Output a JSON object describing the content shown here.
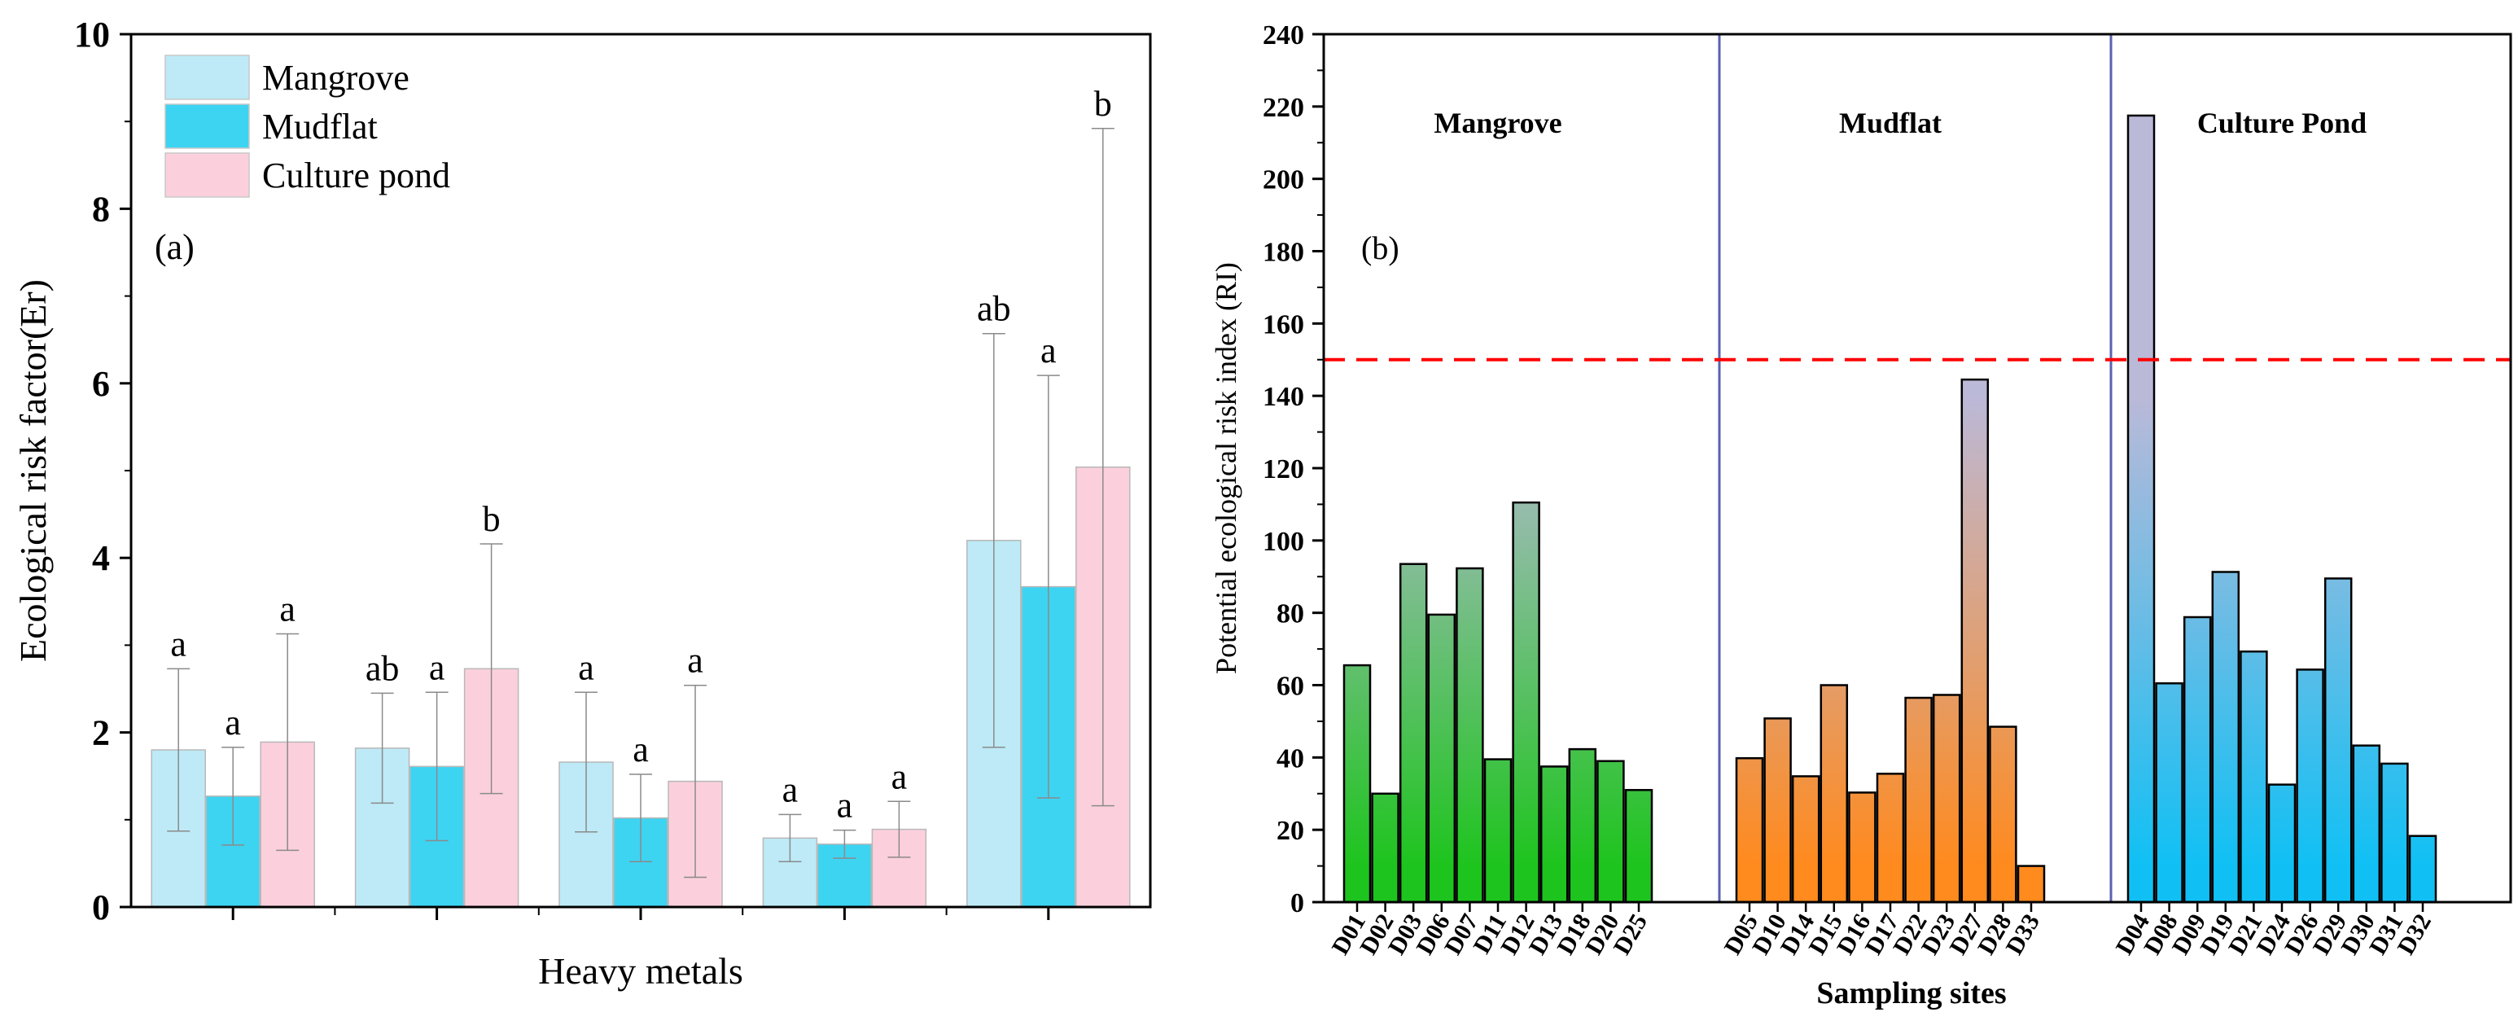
{
  "chart_data": [
    {
      "type": "bar",
      "panel_label": "(a)",
      "xlabel": "Heavy metals",
      "ylabel": "Ecological risk factor(Er)",
      "ylim": [
        0,
        10
      ],
      "yticks": [
        "0",
        "2",
        "4",
        "6",
        "8",
        "10"
      ],
      "group_count": 5,
      "legend_position": "top-left",
      "series": [
        {
          "name": "Mangrove",
          "color": "#bdeaf6",
          "values": [
            1.8,
            1.82,
            1.66,
            0.79,
            4.2
          ],
          "errors": [
            0.93,
            0.63,
            0.8,
            0.27,
            2.37
          ],
          "letters": [
            "a",
            "ab",
            "a",
            "a",
            "ab"
          ]
        },
        {
          "name": "Mudflat",
          "color": "#3dd4f2",
          "values": [
            1.27,
            1.61,
            1.02,
            0.72,
            3.67
          ],
          "errors": [
            0.56,
            0.85,
            0.5,
            0.16,
            2.42
          ],
          "letters": [
            "a",
            "a",
            "a",
            "a",
            "a"
          ]
        },
        {
          "name": "Culture pond",
          "color": "#fbd0dc",
          "values": [
            1.89,
            2.73,
            1.44,
            0.89,
            5.04
          ],
          "errors": [
            1.24,
            1.43,
            1.1,
            0.32,
            3.88
          ],
          "letters": [
            "a",
            "b",
            "a",
            "a",
            "b"
          ]
        }
      ]
    },
    {
      "type": "bar",
      "panel_label": "(b)",
      "xlabel": "Sampling sites",
      "ylabel": "Potential ecological risk index (RI)",
      "ylim": [
        0,
        240
      ],
      "yticks": [
        "0",
        "20",
        "40",
        "60",
        "80",
        "100",
        "120",
        "140",
        "160",
        "180",
        "200",
        "220",
        "240"
      ],
      "threshold": 150,
      "threshold_color": "#ff0000",
      "divider_color": "#5a62b0",
      "groups": [
        {
          "name": "Mangrove",
          "top_color": "#bbb9d8",
          "bottom_color": "#1ec41e",
          "sites": [
            "D01",
            "D02",
            "D03",
            "D06",
            "D07",
            "D11",
            "D12",
            "D13",
            "D18",
            "D20",
            "D25"
          ],
          "values": [
            65.5,
            30,
            93.5,
            79.5,
            92.3,
            39.5,
            110.5,
            37.5,
            42.3,
            39,
            31
          ]
        },
        {
          "name": "Mudflat",
          "top_color": "#bbb9d8",
          "bottom_color": "#ff8a1e",
          "sites": [
            "D05",
            "D10",
            "D14",
            "D15",
            "D16",
            "D17",
            "D22",
            "D23",
            "D27",
            "D28",
            "D33"
          ],
          "values": [
            39.8,
            50.8,
            34.8,
            60,
            30.3,
            35.5,
            56.5,
            57.3,
            144.5,
            48.5,
            10
          ]
        },
        {
          "name": "Culture Pond",
          "top_color": "#bbb9d8",
          "bottom_color": "#10c0f4",
          "sites": [
            "D04",
            "D08",
            "D09",
            "D19",
            "D21",
            "D24",
            "D26",
            "D29",
            "D30",
            "D31",
            "D32"
          ],
          "values": [
            217.5,
            60.5,
            78.8,
            91.3,
            69.3,
            32.5,
            64.3,
            89.5,
            43.3,
            38.3,
            18.3
          ]
        }
      ]
    }
  ]
}
